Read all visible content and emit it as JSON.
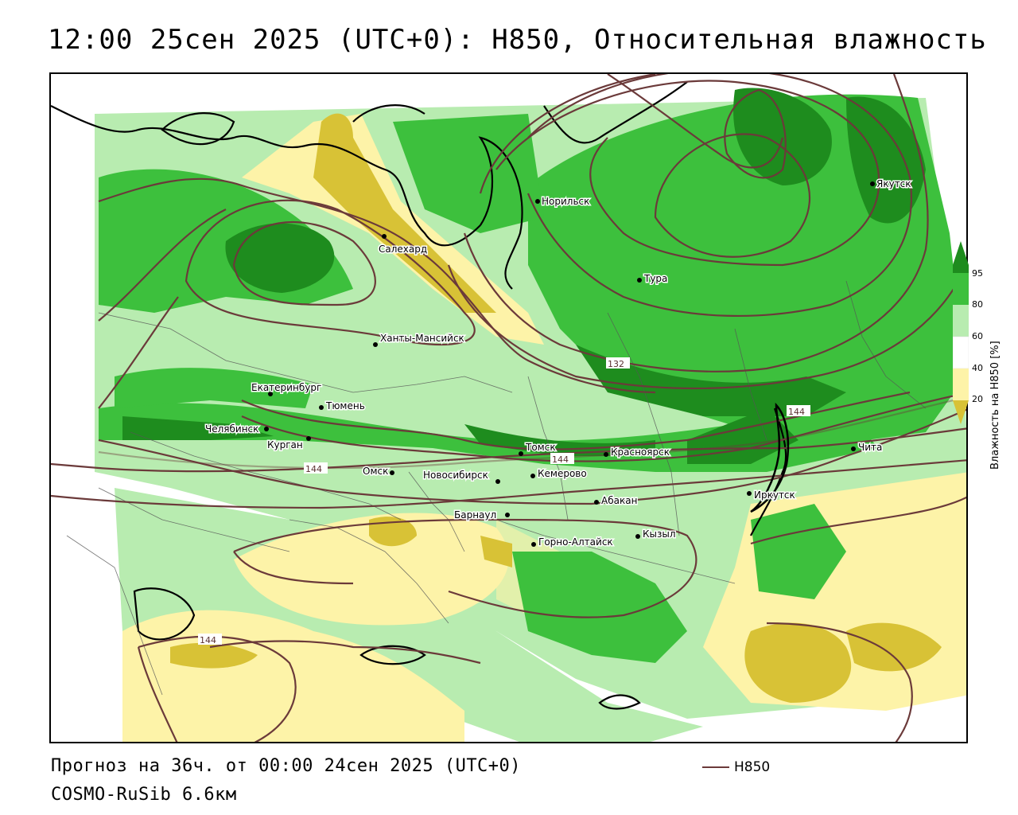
{
  "title": "12:00 25сен 2025 (UTC+0): H850, Относительная влажность",
  "footer": {
    "forecast": "Прогноз на 36ч. от 00:00 24сен 2025 (UTC+0)",
    "model": "COSMO-RuSib 6.6км"
  },
  "legend": {
    "label": "H850",
    "color": "#6b3a3a"
  },
  "colorbar": {
    "title": "Влажность на H850 [%]",
    "ticks": [
      "95",
      "80",
      "60",
      "40",
      "20"
    ],
    "colors": {
      "c95": "#1e8c1e",
      "c80": "#3dc03d",
      "c60": "#b8ecb0",
      "c40": "#ffffff",
      "c20_40": "#fdf3a8",
      "c0_20": "#d8c236"
    }
  },
  "contour_labels": [
    "132",
    "144",
    "144",
    "144",
    "144"
  ],
  "cities": [
    {
      "name": "Норильск"
    },
    {
      "name": "Якутск"
    },
    {
      "name": "Салехард"
    },
    {
      "name": "Тура"
    },
    {
      "name": "Ханты-Мансийск"
    },
    {
      "name": "Екатеринбург"
    },
    {
      "name": "Тюмень"
    },
    {
      "name": "Челябинск"
    },
    {
      "name": "Курган"
    },
    {
      "name": "Томск"
    },
    {
      "name": "Красноярск"
    },
    {
      "name": "Чита"
    },
    {
      "name": "Омск"
    },
    {
      "name": "Новосибирск"
    },
    {
      "name": "Кемерово"
    },
    {
      "name": "Абакан"
    },
    {
      "name": "Иркутск"
    },
    {
      "name": "Барнаул"
    },
    {
      "name": "Горно-Алтайск"
    },
    {
      "name": "Кызыл"
    }
  ]
}
